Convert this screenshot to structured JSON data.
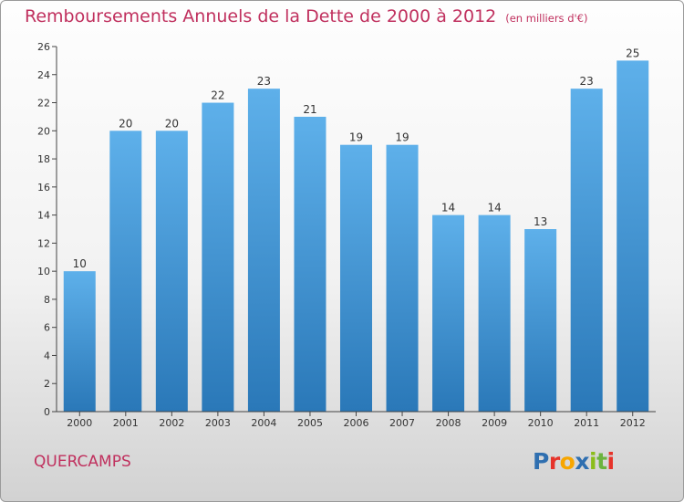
{
  "header": {
    "title": "Remboursements Annuels de la Dette de 2000 à 2012",
    "subtitle": "(en milliers d'€)"
  },
  "footer": {
    "commune": "QUERCAMPS",
    "logo_text": "Proxiti",
    "logo_colors": [
      "#2f6fb0",
      "#e6332a",
      "#f7a600",
      "#2f6fb0",
      "#8bbd1b",
      "#6cb33f",
      "#e6332a"
    ]
  },
  "colors": {
    "title": "#c0305e",
    "bar_light": "#5eb0ea",
    "bar_dark": "#2a78b8",
    "axis": "#444444",
    "grid": "#bbbbbb"
  },
  "chart_data": {
    "type": "bar",
    "title": "Remboursements Annuels de la Dette de 2000 à 2012",
    "subtitle": "(en milliers d'€)",
    "xlabel": "",
    "ylabel": "",
    "categories": [
      "2000",
      "2001",
      "2002",
      "2003",
      "2004",
      "2005",
      "2006",
      "2007",
      "2008",
      "2009",
      "2010",
      "2011",
      "2012"
    ],
    "values": [
      10,
      20,
      20,
      22,
      23,
      21,
      19,
      19,
      14,
      14,
      13,
      23,
      25
    ],
    "data_labels": [
      "10",
      "20",
      "20",
      "22",
      "23",
      "21",
      "19",
      "19",
      "14",
      "14",
      "13",
      "23",
      "25"
    ],
    "ylim": [
      0,
      26
    ],
    "yticks": [
      0,
      2,
      4,
      6,
      8,
      10,
      12,
      14,
      16,
      18,
      20,
      22,
      24,
      26
    ],
    "grid": false,
    "legend": "none"
  }
}
